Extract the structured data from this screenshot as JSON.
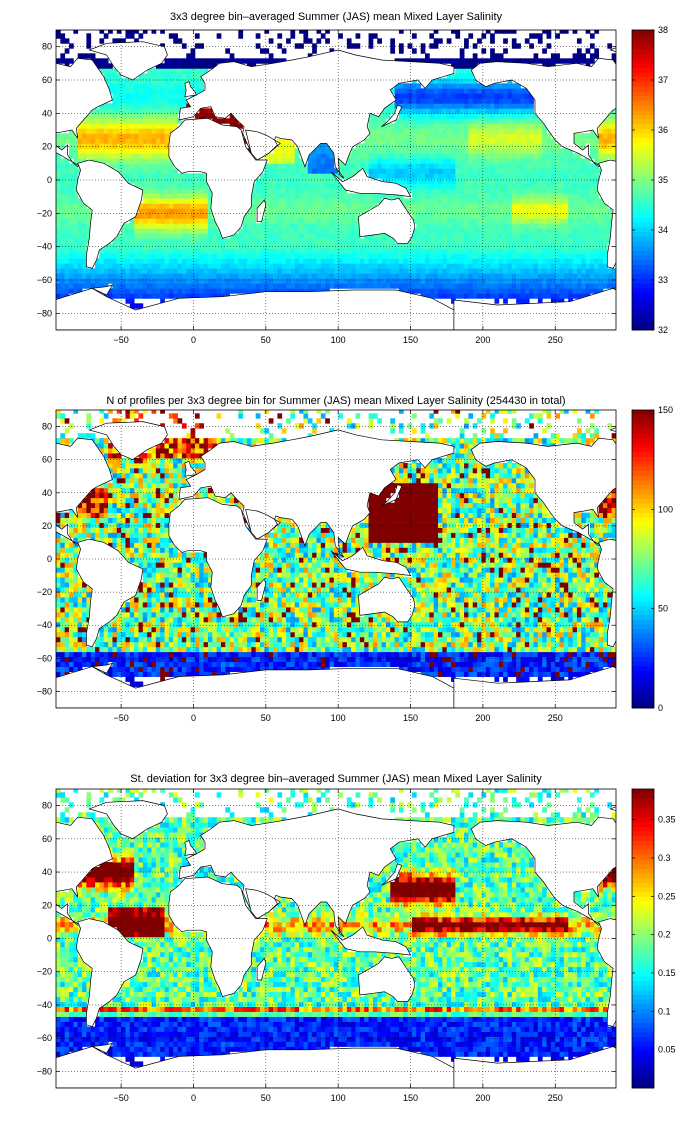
{
  "panels": [
    {
      "id": "mean",
      "title": "3x3 degree bin–averaged Summer (JAS) mean Mixed Layer Salinity",
      "colorbar": {
        "min": 32,
        "max": 38,
        "ticks": [
          32,
          33,
          34,
          35,
          36,
          37,
          38
        ],
        "tick_labels": [
          "32",
          "33",
          "34",
          "35",
          "36",
          "37",
          "38"
        ]
      },
      "field": "salinity"
    },
    {
      "id": "count",
      "title": "N of profiles per 3x3 degree bin for Summer (JAS) mean Mixed Layer Salinity  (254430 in total)",
      "colorbar": {
        "min": 0,
        "max": 150,
        "ticks": [
          0,
          50,
          100,
          150
        ],
        "tick_labels": [
          "0",
          "50",
          "100",
          "150"
        ]
      },
      "field": "count"
    },
    {
      "id": "std",
      "title": "St. deviation for 3x3 degree bin–averaged Summer (JAS) mean Mixed Layer Salinity",
      "colorbar": {
        "min": 0,
        "max": 0.39,
        "ticks": [
          0.05,
          0.1,
          0.15,
          0.2,
          0.25,
          0.3,
          0.35
        ],
        "tick_labels": [
          "0.05",
          "0.1",
          "0.15",
          "0.2",
          "0.25",
          "0.3",
          "0.35"
        ]
      },
      "field": "std"
    }
  ],
  "axes": {
    "xlim": [
      -95,
      292
    ],
    "ylim": [
      -90,
      90
    ],
    "xticks": [
      -50,
      0,
      50,
      100,
      150,
      200,
      250
    ],
    "xtick_labels": [
      "−50",
      "0",
      "50",
      "100",
      "150",
      "200",
      "250"
    ],
    "yticks": [
      -80,
      -60,
      -40,
      -20,
      0,
      20,
      40,
      60,
      80
    ],
    "ytick_labels": [
      "−80",
      "−60",
      "−40",
      "−20",
      "0",
      "20",
      "40",
      "60",
      "80"
    ],
    "grid": "dotted",
    "bin_size_deg": 3
  },
  "colormap": "jet"
}
